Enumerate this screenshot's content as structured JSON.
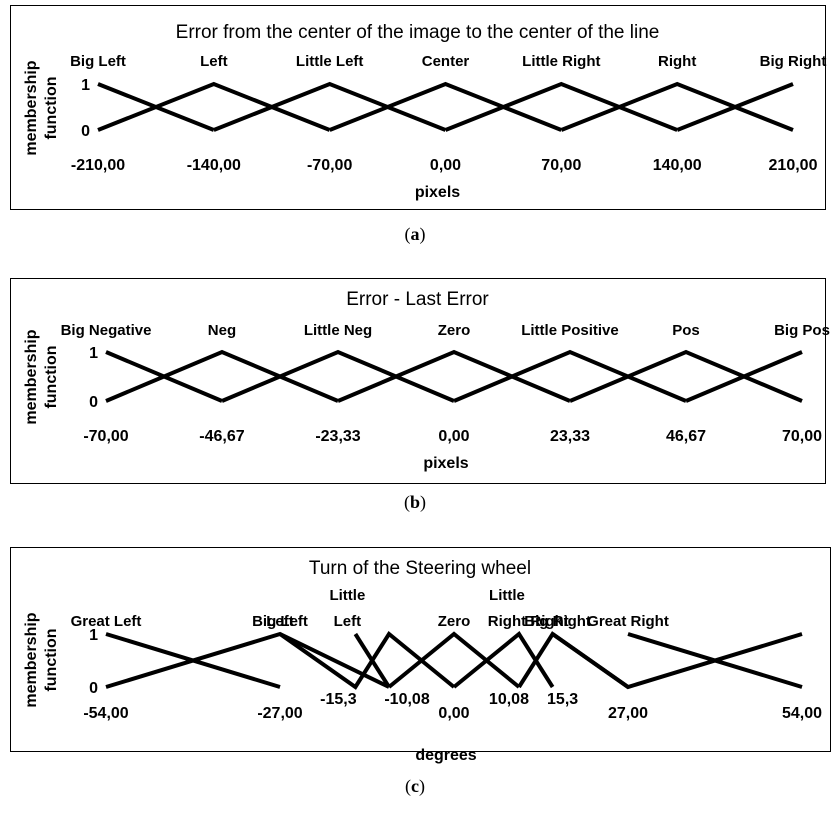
{
  "chart_data": [
    {
      "type": "line",
      "title": "Error from the center of the image to the center of the line",
      "xlabel": "pixels",
      "ylabel": "membership function",
      "yticks": [
        "0",
        "1"
      ],
      "xlim": [
        -210,
        210
      ],
      "ylim": [
        0,
        1
      ],
      "x_ticks": [
        {
          "value": -210,
          "label": "-210,00"
        },
        {
          "value": -140,
          "label": "-140,00"
        },
        {
          "value": -70,
          "label": "-70,00"
        },
        {
          "value": 0,
          "label": "0,00"
        },
        {
          "value": 70,
          "label": "70,00"
        },
        {
          "value": 140,
          "label": "140,00"
        },
        {
          "value": 210,
          "label": "210,00"
        }
      ],
      "sets": [
        {
          "name": "Big Left",
          "lines": [
            "Big Left"
          ],
          "points": [
            [
              -210,
              1
            ],
            [
              -140,
              0
            ]
          ]
        },
        {
          "name": "Left",
          "lines": [
            "Left"
          ],
          "points": [
            [
              -210,
              0
            ],
            [
              -140,
              1
            ],
            [
              -70,
              0
            ]
          ]
        },
        {
          "name": "Little Left",
          "lines": [
            "Little Left"
          ],
          "points": [
            [
              -140,
              0
            ],
            [
              -70,
              1
            ],
            [
              0,
              0
            ]
          ]
        },
        {
          "name": "Center",
          "lines": [
            "Center"
          ],
          "points": [
            [
              -70,
              0
            ],
            [
              0,
              1
            ],
            [
              70,
              0
            ]
          ]
        },
        {
          "name": "Little Right",
          "lines": [
            "Little Right"
          ],
          "points": [
            [
              0,
              0
            ],
            [
              70,
              1
            ],
            [
              140,
              0
            ]
          ]
        },
        {
          "name": "Right",
          "lines": [
            "Right"
          ],
          "points": [
            [
              70,
              0
            ],
            [
              140,
              1
            ],
            [
              210,
              0
            ]
          ]
        },
        {
          "name": "Big Right",
          "lines": [
            "Big Right"
          ],
          "points": [
            [
              140,
              0
            ],
            [
              210,
              1
            ]
          ]
        }
      ],
      "caption": {
        "open": "(",
        "letter": "a",
        "close": ")"
      }
    },
    {
      "type": "line",
      "title": "Error - Last Error",
      "xlabel": "pixels",
      "ylabel": "membership function",
      "yticks": [
        "0",
        "1"
      ],
      "xlim": [
        -70,
        70
      ],
      "ylim": [
        0,
        1
      ],
      "x_ticks": [
        {
          "value": -70,
          "label": "-70,00"
        },
        {
          "value": -46.67,
          "label": "-46,67"
        },
        {
          "value": -23.33,
          "label": "-23,33"
        },
        {
          "value": 0,
          "label": "0,00"
        },
        {
          "value": 23.33,
          "label": "23,33"
        },
        {
          "value": 46.67,
          "label": "46,67"
        },
        {
          "value": 70,
          "label": "70,00"
        }
      ],
      "sets": [
        {
          "name": "Big Negative",
          "lines": [
            "Big Negative"
          ],
          "points": [
            [
              -70,
              1
            ],
            [
              -46.67,
              0
            ]
          ]
        },
        {
          "name": "Neg",
          "lines": [
            "Neg"
          ],
          "points": [
            [
              -70,
              0
            ],
            [
              -46.67,
              1
            ],
            [
              -23.33,
              0
            ]
          ]
        },
        {
          "name": "Little Neg",
          "lines": [
            "Little Neg"
          ],
          "points": [
            [
              -46.67,
              0
            ],
            [
              -23.33,
              1
            ],
            [
              0,
              0
            ]
          ]
        },
        {
          "name": "Zero",
          "lines": [
            "Zero"
          ],
          "points": [
            [
              -23.33,
              0
            ],
            [
              0,
              1
            ],
            [
              23.33,
              0
            ]
          ]
        },
        {
          "name": "Little Positive",
          "lines": [
            "Little Positive"
          ],
          "points": [
            [
              0,
              0
            ],
            [
              23.33,
              1
            ],
            [
              46.67,
              0
            ]
          ]
        },
        {
          "name": "Pos",
          "lines": [
            "Pos"
          ],
          "points": [
            [
              23.33,
              0
            ],
            [
              46.67,
              1
            ],
            [
              70,
              0
            ]
          ]
        },
        {
          "name": "Big Pos",
          "lines": [
            "Big Pos"
          ],
          "points": [
            [
              46.67,
              0
            ],
            [
              70,
              1
            ]
          ]
        }
      ],
      "caption": {
        "open": "(",
        "letter": "b",
        "close": ")"
      }
    },
    {
      "type": "line",
      "title": "Turn of the Steering wheel",
      "xlabel": "degrees",
      "ylabel": "membership function",
      "yticks": [
        "0",
        "1"
      ],
      "xlim": [
        -54,
        54
      ],
      "ylim": [
        0,
        1
      ],
      "x_ticks": [
        {
          "value": -54,
          "label": "-54,00"
        },
        {
          "value": -27,
          "label": "-27,00"
        },
        {
          "value": 0,
          "label": "0,00"
        },
        {
          "value": 27,
          "label": "27,00"
        },
        {
          "value": 54,
          "label": "54,00"
        }
      ],
      "inner_ticks": [
        {
          "value": -15.3,
          "label": "-15,3"
        },
        {
          "value": -10.08,
          "label": "-10,08"
        },
        {
          "value": 10.08,
          "label": "10,08"
        },
        {
          "value": 15.3,
          "label": "15,3"
        }
      ],
      "sets": [
        {
          "name": "Great Left",
          "lines": [
            "Great Left"
          ],
          "points": [
            [
              -54,
              1
            ],
            [
              -27,
              0
            ]
          ]
        },
        {
          "name": "Big Left",
          "lines": [
            "Big Left"
          ],
          "points": [
            [
              -54,
              0
            ],
            [
              -27,
              1
            ],
            [
              -10.08,
              0
            ]
          ]
        },
        {
          "name": "Left",
          "lines": [
            "Left"
          ],
          "points": [
            [
              -27,
              1
            ],
            [
              -15.3,
              0
            ],
            [
              -10.08,
              1
            ],
            [
              0,
              0
            ]
          ]
        },
        {
          "name": "Little Left",
          "lines": [
            "Little",
            "Left"
          ],
          "points": [
            [
              -15.3,
              1
            ],
            [
              -10.08,
              0
            ]
          ]
        },
        {
          "name": "Zero",
          "lines": [
            "Zero"
          ],
          "points": [
            [
              -10.08,
              0
            ],
            [
              0,
              1
            ],
            [
              10.08,
              0
            ]
          ]
        },
        {
          "name": "Little Right",
          "lines": [
            "Little",
            "Right"
          ],
          "points": [
            [
              0,
              0
            ],
            [
              10.08,
              1
            ],
            [
              15.3,
              0
            ]
          ]
        },
        {
          "name": "Right",
          "lines": [
            "Right"
          ],
          "points": [
            [
              10.08,
              0
            ],
            [
              15.3,
              1
            ],
            [
              27,
              0
            ]
          ]
        },
        {
          "name": "Big Right",
          "lines": [
            "Big Right"
          ],
          "points": [
            [
              15.3,
              1
            ],
            [
              27,
              0
            ],
            [
              54,
              1
            ]
          ]
        },
        {
          "name": "Great Right",
          "lines": [
            "Great Right"
          ],
          "points": [
            [
              27,
              1
            ],
            [
              54,
              0
            ]
          ]
        }
      ],
      "caption": {
        "open": "(",
        "letter": "c",
        "close": ")"
      }
    }
  ]
}
